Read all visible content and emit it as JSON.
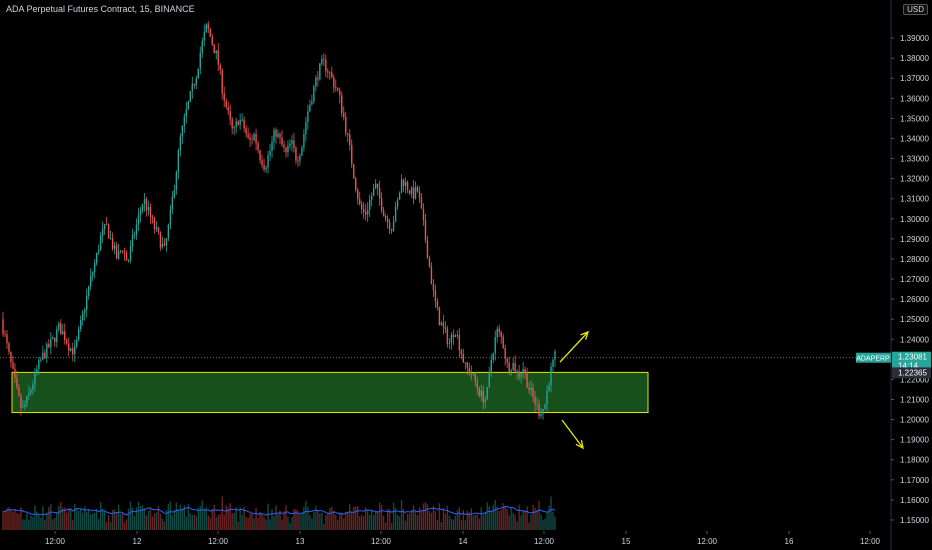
{
  "header": {
    "title": "ADA Perpetual Futures Contract, 15, BINANCE",
    "currency": "USD"
  },
  "price_badges": {
    "symbol": "ADAPERP",
    "last_price": "1.23081",
    "countdown": "14:14",
    "zone_price": "1.22365"
  },
  "colors": {
    "up": "#26a69a",
    "down": "#ef5350",
    "volume_ma": "#2962ff",
    "zone_fill": "#1b5e20",
    "zone_border": "#e6e600",
    "arrow": "#e6e600",
    "badge_symbol": "#26a69a"
  },
  "chart_data": {
    "type": "candlestick",
    "title": "ADA Perpetual Futures Contract, 15, BINANCE",
    "y_ticks": [
      "1.39000",
      "1.38000",
      "1.37000",
      "1.36000",
      "1.35000",
      "1.34000",
      "1.33000",
      "1.32000",
      "1.31000",
      "1.30000",
      "1.29000",
      "1.28000",
      "1.27000",
      "1.26000",
      "1.25000",
      "1.24000",
      "1.22000",
      "1.21000",
      "1.20000",
      "1.19000",
      "1.18000",
      "1.17000",
      "1.16000",
      "1.15000"
    ],
    "ylim": [
      1.145,
      1.4
    ],
    "x_ticks": [
      "12:00",
      "12",
      "12:00",
      "13",
      "12:00",
      "14",
      "12:00",
      "15",
      "12:00",
      "16",
      "12:00"
    ],
    "price_path": [
      1.25,
      1.238,
      1.226,
      1.214,
      1.204,
      1.21,
      1.218,
      1.226,
      1.232,
      1.236,
      1.24,
      1.246,
      1.242,
      1.236,
      1.234,
      1.246,
      1.258,
      1.27,
      1.28,
      1.292,
      1.296,
      1.288,
      1.28,
      1.286,
      1.278,
      1.29,
      1.3,
      1.31,
      1.303,
      1.296,
      1.29,
      1.284,
      1.3,
      1.32,
      1.34,
      1.352,
      1.362,
      1.372,
      1.386,
      1.396,
      1.388,
      1.38,
      1.364,
      1.352,
      1.342,
      1.35,
      1.346,
      1.338,
      1.342,
      1.332,
      1.326,
      1.334,
      1.344,
      1.338,
      1.332,
      1.338,
      1.33,
      1.336,
      1.352,
      1.362,
      1.372,
      1.378,
      1.374,
      1.368,
      1.362,
      1.35,
      1.336,
      1.32,
      1.306,
      1.302,
      1.31,
      1.316,
      1.308,
      1.3,
      1.296,
      1.306,
      1.32,
      1.316,
      1.312,
      1.314,
      1.298,
      1.28,
      1.262,
      1.25,
      1.244,
      1.238,
      1.246,
      1.236,
      1.226,
      1.224,
      1.218,
      1.212,
      1.21,
      1.232,
      1.244,
      1.24,
      1.226,
      1.228,
      1.222,
      1.226,
      1.216,
      1.21,
      1.204,
      1.206,
      1.222,
      1.231
    ],
    "zone": {
      "top": 1.2235,
      "bottom": 1.2035
    },
    "last_price": 1.23081
  }
}
